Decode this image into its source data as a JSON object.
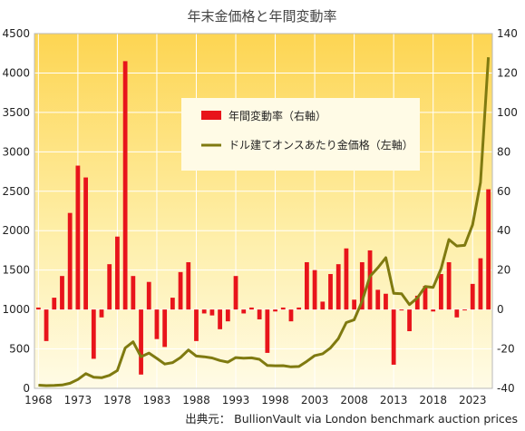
{
  "chart_data": {
    "type": "bar+line",
    "title": "年末金価格と年間変動率",
    "source": "出典元： BullionVault via London benchmark auction prices",
    "x_ticks": [
      "1968",
      "1973",
      "1978",
      "1983",
      "1988",
      "1993",
      "1998",
      "2003",
      "2008",
      "2013",
      "2018",
      "2023"
    ],
    "left_axis": {
      "min": 0,
      "max": 4500,
      "ticks": [
        "0",
        "500",
        "1000",
        "1500",
        "2000",
        "2500",
        "3000",
        "3500",
        "4000",
        "4500"
      ]
    },
    "right_axis": {
      "min": -40,
      "max": 140,
      "ticks": [
        "-40",
        "-20",
        "0",
        "20",
        "40",
        "60",
        "80",
        "100",
        "120",
        "140"
      ]
    },
    "series": [
      {
        "name": "年間変動率（右軸）",
        "type": "bar",
        "axis": "right",
        "color": "#e8141b",
        "x": [
          1968,
          1969,
          1970,
          1971,
          1972,
          1973,
          1974,
          1975,
          1976,
          1977,
          1978,
          1979,
          1980,
          1981,
          1982,
          1983,
          1984,
          1985,
          1986,
          1987,
          1988,
          1989,
          1990,
          1991,
          1992,
          1993,
          1994,
          1995,
          1996,
          1997,
          1998,
          1999,
          2000,
          2001,
          2002,
          2003,
          2004,
          2005,
          2006,
          2007,
          2008,
          2009,
          2010,
          2011,
          2012,
          2013,
          2014,
          2015,
          2016,
          2017,
          2018,
          2019,
          2020,
          2021,
          2022,
          2023,
          2024,
          2025
        ],
        "values": [
          1,
          -16,
          6,
          17,
          49,
          73,
          67,
          -25,
          -4,
          23,
          37,
          126,
          17,
          -33,
          14,
          -15,
          -19,
          6,
          19,
          24,
          -16,
          -2,
          -3,
          -10,
          -6,
          17,
          -2,
          1,
          -5,
          -22,
          -1,
          1,
          -6,
          1,
          24,
          20,
          4,
          18,
          23,
          31,
          5,
          24,
          30,
          10,
          8,
          -28,
          0,
          -11,
          7,
          12,
          -1,
          18,
          24,
          -4,
          0,
          13,
          26,
          61
        ]
      },
      {
        "name": "ドル建てオンスあたり金価格（左軸）",
        "type": "line",
        "axis": "left",
        "color": "#7f7a10",
        "x": [
          1968,
          1969,
          1970,
          1971,
          1972,
          1973,
          1974,
          1975,
          1976,
          1977,
          1978,
          1979,
          1980,
          1981,
          1982,
          1983,
          1984,
          1985,
          1986,
          1987,
          1988,
          1989,
          1990,
          1991,
          1992,
          1993,
          1994,
          1995,
          1996,
          1997,
          1998,
          1999,
          2000,
          2001,
          2002,
          2003,
          2004,
          2005,
          2006,
          2007,
          2008,
          2009,
          2010,
          2011,
          2012,
          2013,
          2014,
          2015,
          2016,
          2017,
          2018,
          2019,
          2020,
          2021,
          2022,
          2023,
          2024,
          2025
        ],
        "values": [
          40,
          35,
          37,
          43,
          65,
          113,
          187,
          140,
          135,
          165,
          226,
          512,
          590,
          400,
          448,
          380,
          309,
          327,
          391,
          487,
          410,
          401,
          386,
          353,
          333,
          390,
          383,
          387,
          368,
          290,
          287,
          288,
          273,
          277,
          343,
          415,
          438,
          513,
          632,
          834,
          870,
          1104,
          1420,
          1531,
          1657,
          1205,
          1199,
          1062,
          1146,
          1291,
          1281,
          1515,
          1888,
          1806,
          1814,
          2075,
          2610,
          4200
        ]
      }
    ]
  }
}
